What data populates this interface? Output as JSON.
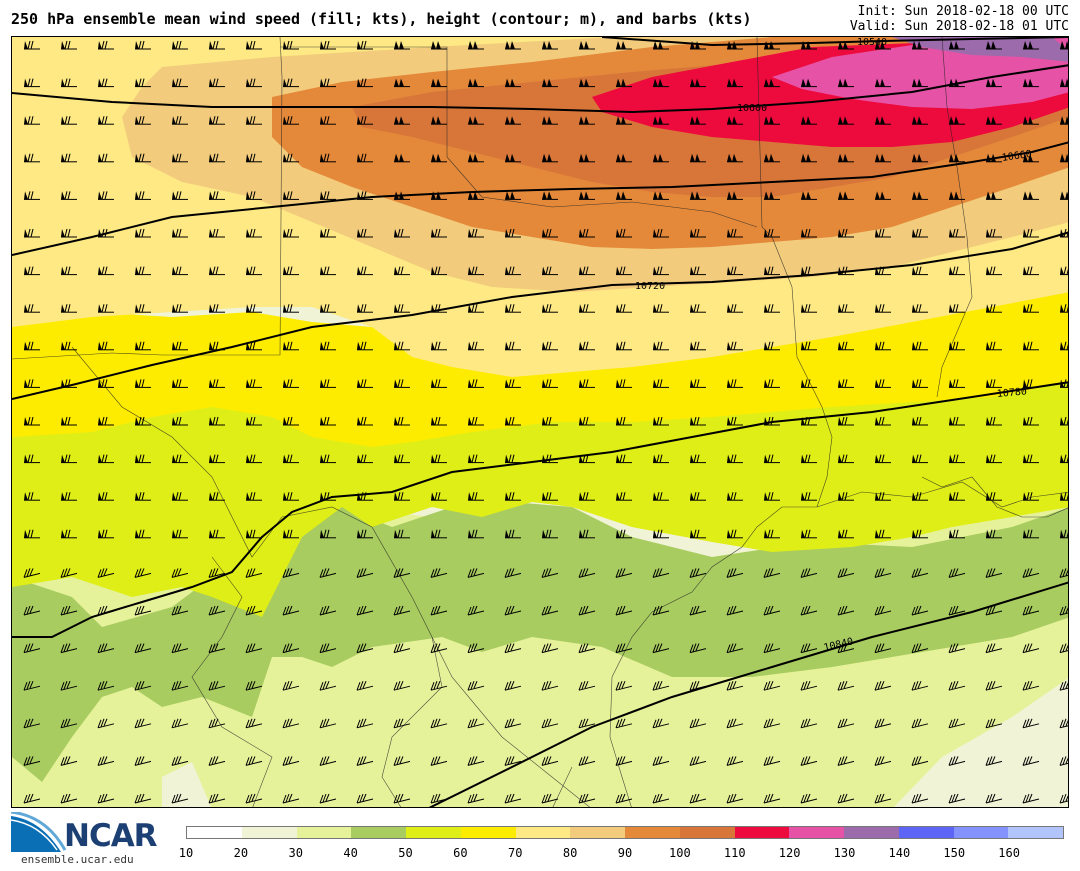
{
  "header": {
    "title": "250 hPa ensemble mean wind speed (fill; kts), height (contour; m), and barbs (kts)",
    "init": "Init: Sun 2018-02-18 00 UTC",
    "valid": "Valid: Sun 2018-02-18 01 UTC"
  },
  "branding": {
    "logo_text": "NCAR",
    "url": "ensemble.ucar.edu"
  },
  "legend": {
    "units": "kts",
    "ticks": [
      "10",
      "20",
      "30",
      "40",
      "50",
      "60",
      "70",
      "80",
      "90",
      "100",
      "110",
      "120",
      "130",
      "140",
      "150",
      "160"
    ],
    "bins": [
      {
        "from": 10,
        "to": 20,
        "color": "#ffffff"
      },
      {
        "from": 20,
        "to": 30,
        "color": "#f0f3d6"
      },
      {
        "from": 30,
        "to": 40,
        "color": "#e6f29a"
      },
      {
        "from": 40,
        "to": 50,
        "color": "#a8cc60"
      },
      {
        "from": 50,
        "to": 60,
        "color": "#dfee16"
      },
      {
        "from": 60,
        "to": 70,
        "color": "#feec00"
      },
      {
        "from": 70,
        "to": 80,
        "color": "#fee984"
      },
      {
        "from": 80,
        "to": 90,
        "color": "#f2cc7c"
      },
      {
        "from": 90,
        "to": 100,
        "color": "#e4893a"
      },
      {
        "from": 100,
        "to": 110,
        "color": "#d8763a"
      },
      {
        "from": 110,
        "to": 120,
        "color": "#ed0a3c"
      },
      {
        "from": 120,
        "to": 130,
        "color": "#e653a6"
      },
      {
        "from": 130,
        "to": 140,
        "color": "#9b6bab"
      },
      {
        "from": 140,
        "to": 150,
        "color": "#5d65f6"
      },
      {
        "from": 150,
        "to": 160,
        "color": "#8493fc"
      },
      {
        "from": 160,
        "to": 170,
        "color": "#b1c4fb"
      }
    ]
  },
  "map": {
    "region": "South-central United States and northwestern Gulf of Mexico",
    "height_contours_m": [
      "10540",
      "10600",
      "10660",
      "10720",
      "10780",
      "10840"
    ],
    "wind_speed_pattern_kts": [
      {
        "zone": "north-east jet core",
        "speed_range": "110-130"
      },
      {
        "zone": "north-central",
        "speed_range": "90-110"
      },
      {
        "zone": "central band",
        "speed_range": "60-80"
      },
      {
        "zone": "south-central",
        "speed_range": "50-60"
      },
      {
        "zone": "south / gulf",
        "speed_range": "20-50"
      }
    ]
  }
}
